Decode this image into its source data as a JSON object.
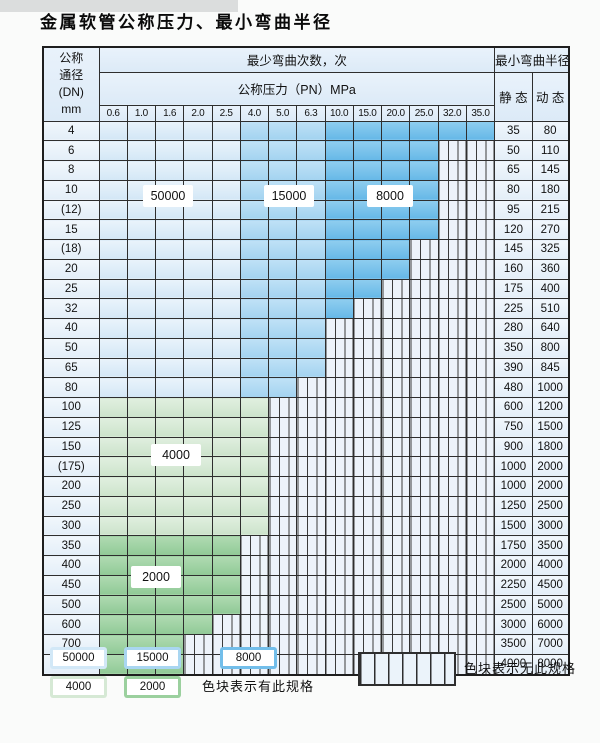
{
  "title": "金属软管公称压力、最小弯曲半径",
  "table": {
    "header": {
      "dn_label_lines": [
        "公称",
        "通径",
        "(DN)",
        "mm"
      ],
      "cycles_label": "最少弯曲次数，次",
      "pressure_label": "公称压力（PN）MPa",
      "pressure_columns": [
        "0.6",
        "1.0",
        "1.6",
        "2.0",
        "2.5",
        "4.0",
        "5.0",
        "6.3",
        "10.0",
        "15.0",
        "20.0",
        "25.0",
        "32.0",
        "35.0"
      ],
      "radius_label": "最小弯曲半径",
      "static_label": "静 态",
      "dynamic_label": "动 态"
    },
    "rows": [
      {
        "dn": "4",
        "band": "blue",
        "colored": 14,
        "static": "35",
        "dynamic": "80"
      },
      {
        "dn": "6",
        "band": "blue",
        "colored": 12,
        "static": "50",
        "dynamic": "110"
      },
      {
        "dn": "8",
        "band": "blue",
        "colored": 12,
        "static": "65",
        "dynamic": "145"
      },
      {
        "dn": "10",
        "band": "blue",
        "colored": 12,
        "static": "80",
        "dynamic": "180"
      },
      {
        "dn": "(12)",
        "band": "blue",
        "colored": 12,
        "static": "95",
        "dynamic": "215"
      },
      {
        "dn": "15",
        "band": "blue",
        "colored": 12,
        "static": "120",
        "dynamic": "270"
      },
      {
        "dn": "(18)",
        "band": "blue",
        "colored": 11,
        "static": "145",
        "dynamic": "325"
      },
      {
        "dn": "20",
        "band": "blue",
        "colored": 11,
        "static": "160",
        "dynamic": "360"
      },
      {
        "dn": "25",
        "band": "blue",
        "colored": 10,
        "static": "175",
        "dynamic": "400"
      },
      {
        "dn": "32",
        "band": "blue",
        "colored": 9,
        "static": "225",
        "dynamic": "510"
      },
      {
        "dn": "40",
        "band": "blue",
        "colored": 8,
        "static": "280",
        "dynamic": "640"
      },
      {
        "dn": "50",
        "band": "blue",
        "colored": 8,
        "static": "350",
        "dynamic": "800"
      },
      {
        "dn": "65",
        "band": "blue",
        "colored": 8,
        "static": "390",
        "dynamic": "845"
      },
      {
        "dn": "80",
        "band": "blue",
        "colored": 7,
        "static": "480",
        "dynamic": "1000"
      },
      {
        "dn": "100",
        "band": "green4000",
        "colored": 6,
        "static": "600",
        "dynamic": "1200"
      },
      {
        "dn": "125",
        "band": "green4000",
        "colored": 6,
        "static": "750",
        "dynamic": "1500"
      },
      {
        "dn": "150",
        "band": "green4000",
        "colored": 6,
        "static": "900",
        "dynamic": "1800"
      },
      {
        "dn": "(175)",
        "band": "green4000",
        "colored": 6,
        "static": "1000",
        "dynamic": "2000"
      },
      {
        "dn": "200",
        "band": "green4000",
        "colored": 6,
        "static": "1000",
        "dynamic": "2000"
      },
      {
        "dn": "250",
        "band": "green4000",
        "colored": 6,
        "static": "1250",
        "dynamic": "2500"
      },
      {
        "dn": "300",
        "band": "green4000",
        "colored": 6,
        "static": "1500",
        "dynamic": "3000"
      },
      {
        "dn": "350",
        "band": "green2000",
        "colored": 5,
        "static": "1750",
        "dynamic": "3500"
      },
      {
        "dn": "400",
        "band": "green2000",
        "colored": 5,
        "static": "2000",
        "dynamic": "4000"
      },
      {
        "dn": "450",
        "band": "green2000",
        "colored": 5,
        "static": "2250",
        "dynamic": "4500"
      },
      {
        "dn": "500",
        "band": "green2000",
        "colored": 5,
        "static": "2500",
        "dynamic": "5000"
      },
      {
        "dn": "600",
        "band": "green2000",
        "colored": 4,
        "static": "3000",
        "dynamic": "6000"
      },
      {
        "dn": "700",
        "band": "green2000",
        "colored": 3,
        "static": "3500",
        "dynamic": "7000"
      },
      {
        "dn": "800",
        "band": "green2000",
        "colored": 3,
        "static": "4000",
        "dynamic": "8000"
      }
    ]
  },
  "overlay_labels": {
    "v50000": "50000",
    "v15000": "15000",
    "v8000": "8000",
    "v4000": "4000",
    "v2000": "2000"
  },
  "legend": {
    "items": [
      {
        "label": "50000",
        "color": "#D2E8F7"
      },
      {
        "label": "15000",
        "color": "#A9D6F1"
      },
      {
        "label": "8000",
        "color": "#72BEEA"
      },
      {
        "label": "4000",
        "color": "#D6E9D5"
      },
      {
        "label": "2000",
        "color": "#9BD09E"
      }
    ],
    "available_note": "色块表示有此规格",
    "unavailable_note": "色块表示无此规格"
  },
  "colors": {
    "cycles_50000": "#D2E8F7",
    "cycles_15000": "#A9D6F1",
    "cycles_8000": "#72BEEA",
    "cycles_4000": "#D6E9D5",
    "cycles_2000": "#9BD09E",
    "hatch_fill": "#EDF3FA",
    "grid_line": "#2E2E2E"
  }
}
